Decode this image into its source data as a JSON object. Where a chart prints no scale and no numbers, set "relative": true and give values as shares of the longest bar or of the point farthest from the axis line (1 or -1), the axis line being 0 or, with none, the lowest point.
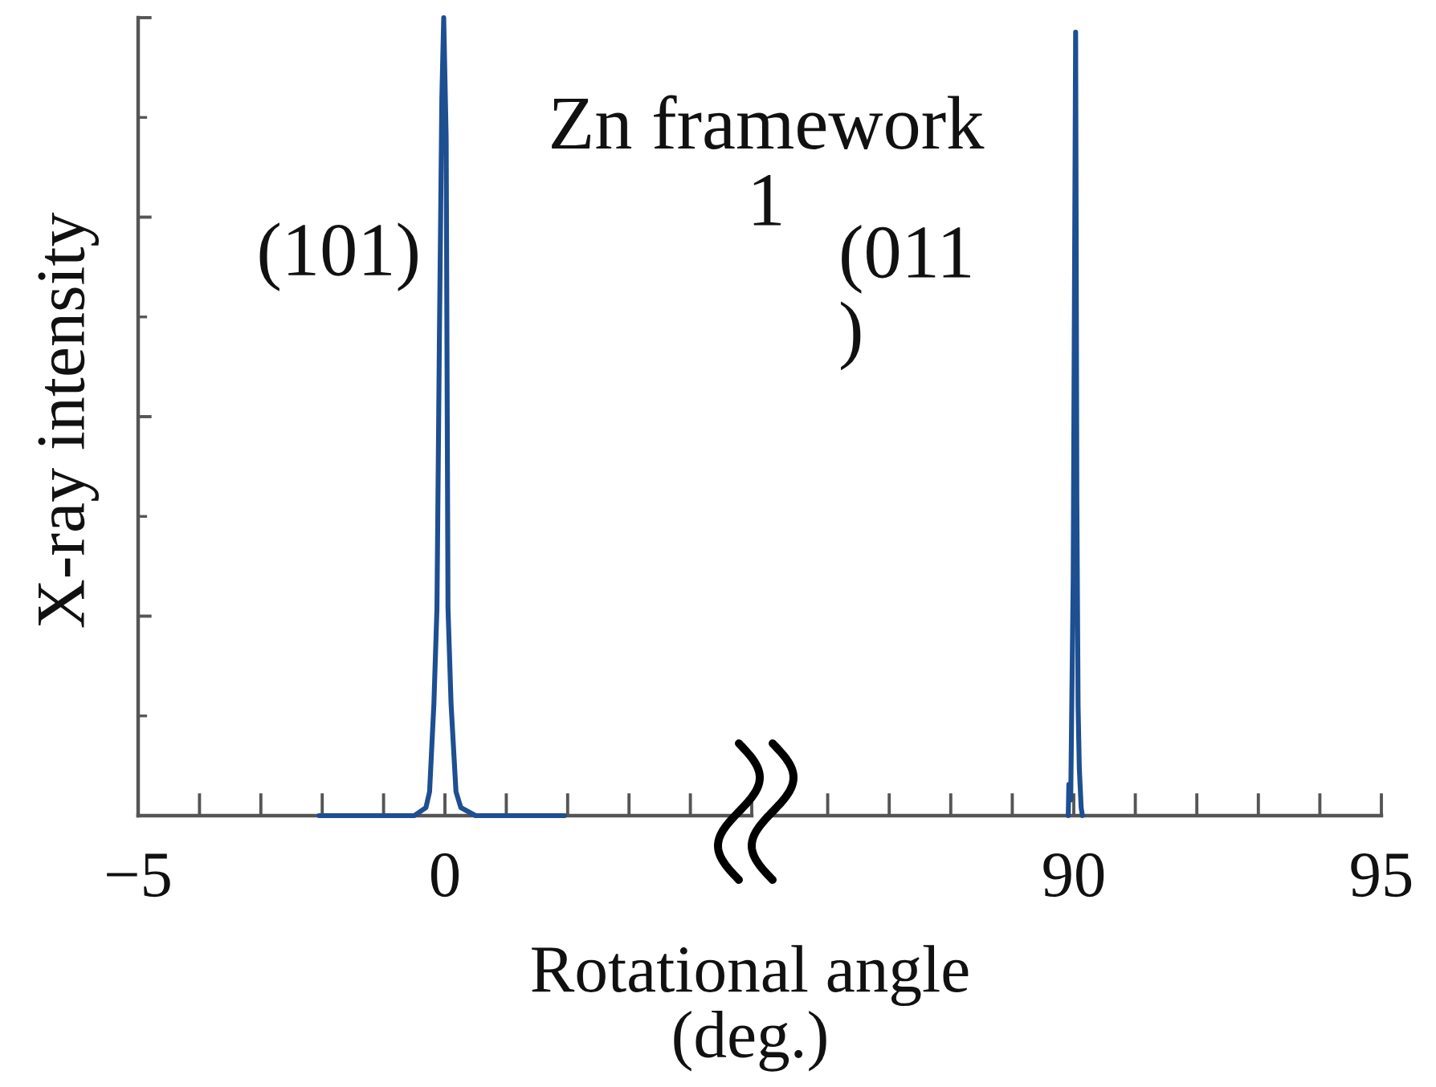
{
  "chart_data": [
    {
      "type": "line",
      "title": "Zn framework\n1",
      "xlabel": "Rotational angle\n(deg.)",
      "ylabel": "X-ray intensity",
      "annotations": [
        "(101)"
      ],
      "relative": true,
      "x": [
        -2.05,
        -0.5,
        -0.31,
        -0.25,
        -0.18,
        -0.13,
        -0.09,
        -0.05,
        -0.02,
        0.02,
        0.05,
        0.1,
        0.18,
        0.26,
        0.5,
        1.95
      ],
      "series": [
        {
          "color": "#1d4f91",
          "values": [
            0,
            0,
            0.01,
            0.03,
            0.14,
            0.26,
            0.6,
            0.9,
            1,
            0.85,
            0.26,
            0.14,
            0.03,
            0.01,
            0,
            0
          ]
        }
      ],
      "xlim": [
        -5,
        5
      ],
      "xticks": [
        {
          "value": -5,
          "label": "−5"
        },
        {
          "value": -4,
          "label": null
        },
        {
          "value": -3,
          "label": null
        },
        {
          "value": -2,
          "label": null
        },
        {
          "value": -1,
          "label": null
        },
        0,
        {
          "value": 1,
          "label": null
        },
        {
          "value": 2,
          "label": null
        },
        {
          "value": 3,
          "label": null
        },
        {
          "value": 4,
          "label": null
        },
        {
          "value": 5,
          "label": null
        }
      ]
    },
    {
      "type": "line",
      "annotations": [
        "(011\n)"
      ],
      "relative": true,
      "x": [
        89.91,
        89.92,
        89.95,
        89.99,
        90.03,
        90.05,
        90.07,
        90.09,
        90.12,
        90.14
      ],
      "series": [
        {
          "color": "#1d4f91",
          "values": [
            0,
            0.04,
            0.02,
            0.3,
            1,
            0.4,
            0.14,
            0.06,
            0.01,
            0
          ]
        }
      ],
      "xlim": [
        85,
        95
      ],
      "xticks": [
        {
          "value": 86,
          "label": null
        },
        {
          "value": 87,
          "label": null
        },
        {
          "value": 88,
          "label": null
        },
        {
          "value": 89,
          "label": null
        },
        90,
        {
          "value": 91,
          "label": null
        },
        {
          "value": 92,
          "label": null
        },
        {
          "value": 93,
          "label": null
        },
        {
          "value": 94,
          "label": null
        },
        95
      ]
    }
  ]
}
